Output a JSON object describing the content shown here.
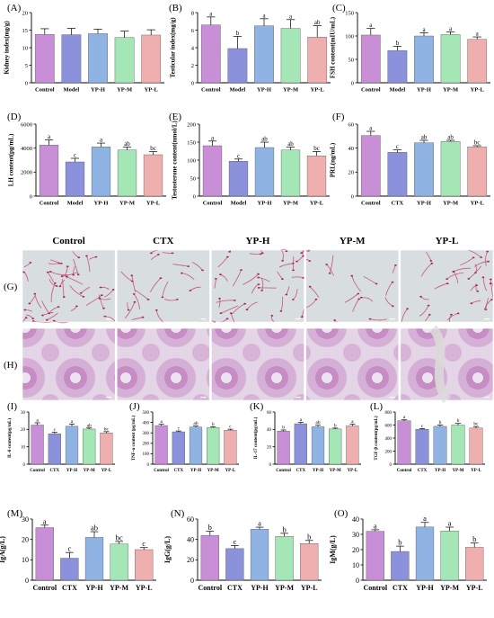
{
  "colors": [
    "#C88FD6",
    "#8B91DA",
    "#8FB3E3",
    "#A4E6B5",
    "#F0AFAF"
  ],
  "micro_groups": [
    "Control",
    "CTX",
    "YP-H",
    "YP-M",
    "YP-L"
  ],
  "micro_rows": [
    "(G)",
    "(H)"
  ],
  "chart_data": [
    {
      "id": "A",
      "label": "(A)",
      "type": "bar",
      "ylabel": "Kidney index(mg/g)",
      "ylim": [
        0,
        20
      ],
      "yticks": [
        0,
        5,
        10,
        15,
        20
      ],
      "categories": [
        "Control",
        "Model",
        "YP-H",
        "YP-M",
        "YP-L"
      ],
      "values": [
        13.8,
        13.7,
        14.0,
        12.9,
        13.6
      ],
      "errors": [
        1.6,
        1.8,
        1.3,
        1.8,
        1.5
      ],
      "letters": [
        "",
        "",
        "",
        "",
        ""
      ]
    },
    {
      "id": "B",
      "label": "(B)",
      "type": "bar",
      "ylabel": "Testicular index(mg/g)",
      "ylim": [
        0,
        8
      ],
      "yticks": [
        0,
        2,
        4,
        6,
        8
      ],
      "categories": [
        "Control",
        "Model",
        "YP-H",
        "YP-M",
        "YP-L"
      ],
      "values": [
        6.6,
        3.9,
        6.5,
        6.2,
        5.2
      ],
      "errors": [
        0.9,
        1.4,
        0.8,
        1.0,
        1.3
      ],
      "letters": [
        "a",
        "b",
        "a",
        "a",
        "ab"
      ]
    },
    {
      "id": "C",
      "label": "(C)",
      "type": "bar",
      "ylabel": "FSH content(mIU/mL)",
      "ylim": [
        0,
        150
      ],
      "yticks": [
        0,
        50,
        100,
        150
      ],
      "categories": [
        "Control",
        "Model",
        "YP-H",
        "YP-M",
        "YP-L"
      ],
      "values": [
        102,
        69,
        100,
        103,
        93
      ],
      "errors": [
        14,
        9,
        7,
        6,
        5
      ],
      "letters": [
        "a",
        "b",
        "a",
        "a",
        "a"
      ]
    },
    {
      "id": "D",
      "label": "(D)",
      "type": "bar",
      "ylabel": "LH content(pg/mL)",
      "ylim": [
        0,
        6000
      ],
      "yticks": [
        0,
        2000,
        4000,
        6000
      ],
      "categories": [
        "Control",
        "Model",
        "YP-H",
        "YP-M",
        "YP-L"
      ],
      "values": [
        4250,
        2850,
        4100,
        3850,
        3450
      ],
      "errors": [
        450,
        300,
        320,
        250,
        260
      ],
      "letters": [
        "a",
        "c",
        "a",
        "ab",
        "bc"
      ]
    },
    {
      "id": "E",
      "label": "(E)",
      "type": "bar",
      "ylabel": "Testosterone content(nmol/L)",
      "ylim": [
        0,
        200
      ],
      "yticks": [
        0,
        50,
        100,
        150,
        200
      ],
      "categories": [
        "Control",
        "Model",
        "YP-H",
        "YP-M",
        "YP-L"
      ],
      "values": [
        140,
        97,
        135,
        128,
        112
      ],
      "errors": [
        13,
        6,
        15,
        8,
        12
      ],
      "letters": [
        "a",
        "c",
        "ab",
        "ab",
        "bc"
      ]
    },
    {
      "id": "F",
      "label": "(F)",
      "type": "bar",
      "ylabel": "PRL(ng/mL)",
      "ylim": [
        0,
        60
      ],
      "yticks": [
        0,
        20,
        40,
        60
      ],
      "categories": [
        "Control",
        "CTX",
        "YP-H",
        "YP-M",
        "YP-L"
      ],
      "values": [
        50.5,
        36.5,
        44.5,
        45.5,
        41
      ],
      "errors": [
        3.5,
        2,
        2,
        1,
        1
      ],
      "letters": [
        "a",
        "c",
        "ab",
        "ab",
        "bc"
      ]
    },
    {
      "id": "I",
      "label": "(I)",
      "type": "bar",
      "ylabel": "IL-6 content(pg/mL)",
      "ylim": [
        0,
        30
      ],
      "yticks": [
        0,
        10,
        20,
        30
      ],
      "categories": [
        "Control",
        "CTX",
        "YP-H",
        "YP-M",
        "YP-L"
      ],
      "values": [
        22.5,
        17.5,
        21.8,
        20.2,
        18.0
      ],
      "errors": [
        1.3,
        0.8,
        1.2,
        0.6,
        0.7
      ],
      "letters": [
        "a",
        "c",
        "a",
        "ab",
        "bc"
      ]
    },
    {
      "id": "J",
      "label": "(J)",
      "type": "bar",
      "ylabel": "TNF-α content (pg/mL)",
      "ylim": [
        0,
        500
      ],
      "yticks": [
        0,
        100,
        200,
        300,
        400,
        500
      ],
      "categories": [
        "Control",
        "CTX",
        "YP-H",
        "YP-M",
        "YP-L"
      ],
      "values": [
        370,
        310,
        355,
        350,
        325
      ],
      "errors": [
        12,
        8,
        10,
        8,
        10
      ],
      "letters": [
        "a",
        "c",
        "ab",
        "b",
        "c"
      ]
    },
    {
      "id": "K",
      "label": "(K)",
      "type": "bar",
      "ylabel": "IL-17 content(pg/mL)",
      "ylim": [
        0,
        60
      ],
      "yticks": [
        0,
        20,
        40,
        60
      ],
      "categories": [
        "Control",
        "CTX",
        "YP-H",
        "YP-M",
        "YP-L"
      ],
      "values": [
        38,
        46.5,
        43,
        40.5,
        44
      ],
      "errors": [
        1.3,
        1.5,
        1.8,
        1.0,
        2.0
      ],
      "letters": [
        "b",
        "a",
        "ab",
        "b",
        "a"
      ]
    },
    {
      "id": "L",
      "label": "(L)",
      "type": "bar",
      "ylabel": "TGF-β content(pg/mL)",
      "ylim": [
        0,
        800
      ],
      "yticks": [
        0,
        200,
        400,
        600,
        800
      ],
      "categories": [
        "Control",
        "CTX",
        "YP-H",
        "YP-M",
        "YP-L"
      ],
      "values": [
        665,
        535,
        580,
        600,
        555
      ],
      "errors": [
        15,
        12,
        20,
        25,
        22
      ],
      "letters": [
        "a",
        "c",
        "b",
        "b",
        "bc"
      ]
    },
    {
      "id": "M",
      "label": "(M)",
      "type": "bar",
      "ylabel": "IgA(g/L)",
      "ylim": [
        0,
        30
      ],
      "yticks": [
        0,
        10,
        20,
        30
      ],
      "categories": [
        "Control",
        "CTX",
        "YP-H",
        "YP-M",
        "YP-L"
      ],
      "values": [
        25.8,
        10.8,
        21.0,
        17.8,
        15.0
      ],
      "errors": [
        1.2,
        2.8,
        2.8,
        1.2,
        1.0
      ],
      "letters": [
        "a",
        "c",
        "ab",
        "bc",
        "c"
      ]
    },
    {
      "id": "N",
      "label": "(N)",
      "type": "bar",
      "ylabel": "IgG(g/L)",
      "ylim": [
        0,
        60
      ],
      "yticks": [
        0,
        20,
        40,
        60
      ],
      "categories": [
        "Control",
        "CTX",
        "YP-H",
        "YP-M",
        "YP-L"
      ],
      "values": [
        44,
        31,
        50,
        43,
        36
      ],
      "errors": [
        4,
        3,
        2,
        3,
        3
      ],
      "letters": [
        "b",
        "c",
        "a",
        "b",
        "b"
      ]
    },
    {
      "id": "O",
      "label": "(O)",
      "type": "bar",
      "ylabel": "IgM(g/L)",
      "ylim": [
        0,
        40
      ],
      "yticks": [
        0,
        10,
        20,
        30,
        40
      ],
      "categories": [
        "Control",
        "CTX",
        "YP-H",
        "YP-M",
        "YP-L"
      ],
      "values": [
        32,
        18.8,
        34.8,
        32.2,
        21.5
      ],
      "errors": [
        1,
        3.5,
        3,
        2.5,
        2.8
      ],
      "letters": [
        "a",
        "b",
        "a",
        "a",
        "b"
      ]
    }
  ]
}
